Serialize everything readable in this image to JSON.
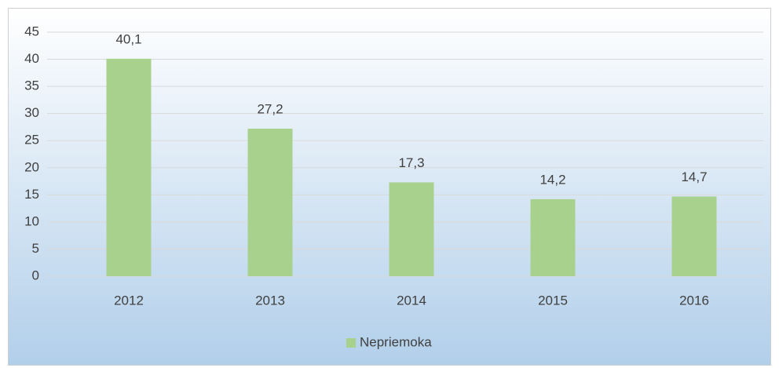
{
  "chart_data": {
    "type": "bar",
    "categories": [
      "2012",
      "2013",
      "2014",
      "2015",
      "2016"
    ],
    "series": [
      {
        "name": "Nepriemoka",
        "color": "#a9d18e",
        "values": [
          40.1,
          27.2,
          17.3,
          14.2,
          14.7
        ],
        "value_labels": [
          "40,1",
          "27,2",
          "17,3",
          "14,2",
          "14,7"
        ]
      }
    ],
    "ylim": [
      0,
      45
    ],
    "yticks": [
      0,
      5,
      10,
      15,
      20,
      25,
      30,
      35,
      40,
      45
    ],
    "grid": true,
    "legend": "bottom"
  }
}
